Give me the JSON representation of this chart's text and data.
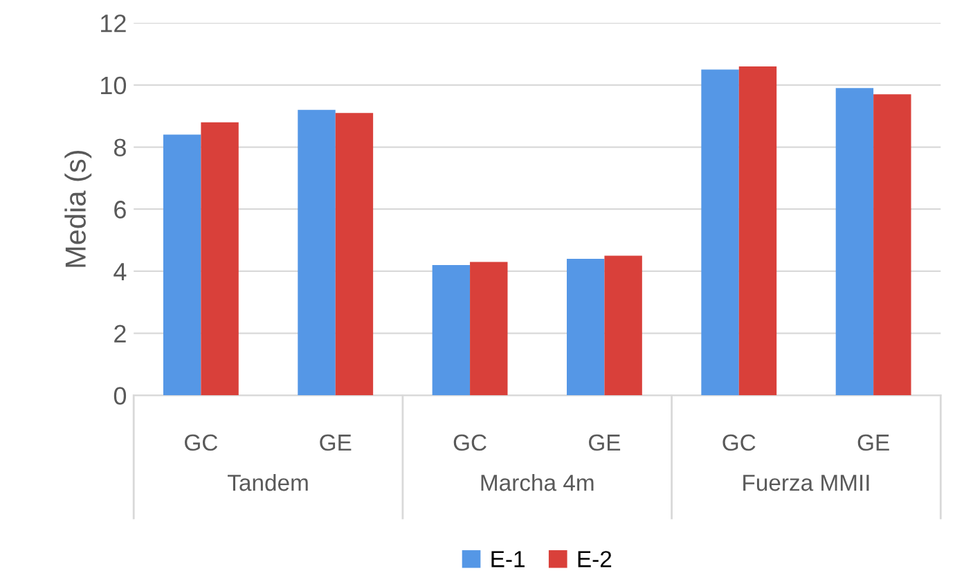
{
  "chart_data": {
    "type": "bar",
    "ylabel": "Media (s)",
    "categories": [
      "GC",
      "GE",
      "GC",
      "GE",
      "GC",
      "GE"
    ],
    "annotations": [
      "Tandem",
      "Marcha 4m",
      "Fuerza MMII"
    ],
    "series": [
      {
        "name": "E-1",
        "color": "#5597e6",
        "values": [
          8.4,
          9.2,
          4.2,
          4.4,
          10.5,
          9.9
        ]
      },
      {
        "name": "E-2",
        "color": "#d9403a",
        "values": [
          8.8,
          9.1,
          4.3,
          4.5,
          10.6,
          9.7
        ]
      }
    ],
    "ylim": [
      0,
      12
    ],
    "yticks": [
      0,
      2,
      4,
      6,
      8,
      10,
      12
    ],
    "grid": "y",
    "legend": "bottom"
  }
}
